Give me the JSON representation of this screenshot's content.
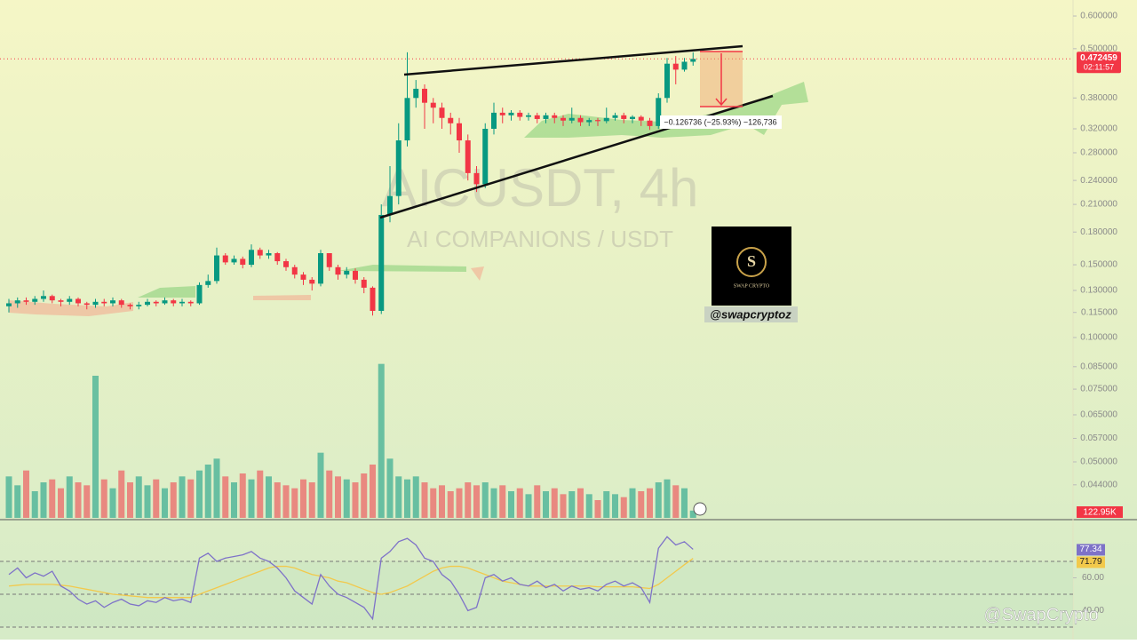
{
  "chart_data": {
    "type": "candlestick",
    "title": "AICUSDT, 4h",
    "subtitle": "AI COMPANIONS / USDT",
    "open": [
      0.119,
      0.121,
      0.123,
      0.122,
      0.124,
      0.126,
      0.123,
      0.122,
      0.124,
      0.121,
      0.12,
      0.122,
      0.121,
      0.123,
      0.12,
      0.119,
      0.12,
      0.122,
      0.121,
      0.123,
      0.121,
      0.122,
      0.121,
      0.134,
      0.137,
      0.158,
      0.152,
      0.155,
      0.15,
      0.163,
      0.158,
      0.16,
      0.153,
      0.148,
      0.142,
      0.138,
      0.135,
      0.16,
      0.148,
      0.142,
      0.145,
      0.138,
      0.132,
      0.116,
      0.198,
      0.22,
      0.3,
      0.38,
      0.4,
      0.37,
      0.36,
      0.34,
      0.33,
      0.3,
      0.25,
      0.235,
      0.32,
      0.35,
      0.345,
      0.35,
      0.342,
      0.345,
      0.338,
      0.345,
      0.34,
      0.335,
      0.34,
      0.332,
      0.336,
      0.334,
      0.34,
      0.345,
      0.338,
      0.342,
      0.335,
      0.325,
      0.38,
      0.46,
      0.445,
      0.465
    ],
    "high": [
      0.124,
      0.125,
      0.125,
      0.126,
      0.13,
      0.127,
      0.124,
      0.126,
      0.125,
      0.122,
      0.124,
      0.124,
      0.125,
      0.124,
      0.121,
      0.122,
      0.124,
      0.123,
      0.125,
      0.124,
      0.124,
      0.123,
      0.136,
      0.142,
      0.165,
      0.16,
      0.158,
      0.157,
      0.168,
      0.165,
      0.163,
      0.161,
      0.155,
      0.15,
      0.144,
      0.14,
      0.163,
      0.16,
      0.15,
      0.148,
      0.147,
      0.14,
      0.133,
      0.21,
      0.26,
      0.33,
      0.49,
      0.42,
      0.41,
      0.38,
      0.37,
      0.35,
      0.34,
      0.31,
      0.26,
      0.33,
      0.37,
      0.36,
      0.355,
      0.355,
      0.35,
      0.35,
      0.35,
      0.35,
      0.345,
      0.36,
      0.345,
      0.34,
      0.34,
      0.36,
      0.35,
      0.35,
      0.345,
      0.345,
      0.34,
      0.39,
      0.475,
      0.48,
      0.475,
      0.49
    ],
    "low": [
      0.115,
      0.118,
      0.12,
      0.12,
      0.122,
      0.121,
      0.119,
      0.12,
      0.119,
      0.117,
      0.118,
      0.119,
      0.119,
      0.118,
      0.117,
      0.117,
      0.119,
      0.119,
      0.12,
      0.119,
      0.119,
      0.119,
      0.12,
      0.132,
      0.135,
      0.15,
      0.15,
      0.147,
      0.148,
      0.155,
      0.155,
      0.15,
      0.145,
      0.139,
      0.134,
      0.13,
      0.133,
      0.145,
      0.138,
      0.139,
      0.135,
      0.128,
      0.113,
      0.114,
      0.19,
      0.21,
      0.29,
      0.36,
      0.32,
      0.33,
      0.32,
      0.31,
      0.28,
      0.24,
      0.225,
      0.23,
      0.31,
      0.33,
      0.335,
      0.335,
      0.335,
      0.33,
      0.33,
      0.33,
      0.325,
      0.33,
      0.325,
      0.325,
      0.325,
      0.33,
      0.335,
      0.33,
      0.33,
      0.325,
      0.318,
      0.32,
      0.37,
      0.41,
      0.44,
      0.455
    ],
    "close": [
      0.121,
      0.123,
      0.122,
      0.124,
      0.126,
      0.123,
      0.122,
      0.124,
      0.121,
      0.12,
      0.122,
      0.121,
      0.123,
      0.12,
      0.119,
      0.12,
      0.122,
      0.121,
      0.123,
      0.121,
      0.122,
      0.121,
      0.134,
      0.137,
      0.158,
      0.152,
      0.155,
      0.15,
      0.163,
      0.158,
      0.16,
      0.153,
      0.148,
      0.142,
      0.138,
      0.135,
      0.16,
      0.148,
      0.142,
      0.145,
      0.138,
      0.132,
      0.116,
      0.198,
      0.22,
      0.3,
      0.38,
      0.4,
      0.37,
      0.36,
      0.34,
      0.33,
      0.3,
      0.25,
      0.235,
      0.32,
      0.35,
      0.345,
      0.35,
      0.342,
      0.345,
      0.338,
      0.345,
      0.34,
      0.335,
      0.34,
      0.332,
      0.336,
      0.334,
      0.34,
      0.345,
      0.338,
      0.342,
      0.335,
      0.325,
      0.38,
      0.46,
      0.445,
      0.465,
      0.472459
    ],
    "up_color": "#089981",
    "down_color": "#f23645",
    "log_scale": true,
    "ylim": [
      0.0366,
      0.656
    ],
    "yticks": [
      {
        "value": 0.6,
        "label": "0.600000"
      },
      {
        "value": 0.5,
        "label": "0.500000"
      },
      {
        "value": 0.38,
        "label": "0.380000"
      },
      {
        "value": 0.32,
        "label": "0.320000"
      },
      {
        "value": 0.28,
        "label": "0.280000"
      },
      {
        "value": 0.24,
        "label": "0.240000"
      },
      {
        "value": 0.21,
        "label": "0.210000"
      },
      {
        "value": 0.18,
        "label": "0.180000"
      },
      {
        "value": 0.15,
        "label": "0.150000"
      },
      {
        "value": 0.13,
        "label": "0.130000"
      },
      {
        "value": 0.115,
        "label": "0.115000"
      },
      {
        "value": 0.1,
        "label": "0.100000"
      },
      {
        "value": 0.085,
        "label": "0.085000"
      },
      {
        "value": 0.075,
        "label": "0.075000"
      },
      {
        "value": 0.065,
        "label": "0.065000"
      },
      {
        "value": 0.057,
        "label": "0.057000"
      },
      {
        "value": 0.05,
        "label": "0.050000"
      },
      {
        "value": 0.044,
        "label": "0.044000"
      }
    ],
    "last_price": 0.472459,
    "countdown": "02:11:57",
    "measure_label": "−0.126736 (−25.93%) −126,736",
    "volume": {
      "values": [
        700000,
        550000,
        800000,
        450000,
        600000,
        650000,
        500000,
        700000,
        600000,
        550000,
        2400000,
        650000,
        500000,
        800000,
        600000,
        700000,
        550000,
        650000,
        500000,
        600000,
        700000,
        650000,
        800000,
        900000,
        1000000,
        700000,
        600000,
        750000,
        650000,
        800000,
        700000,
        600000,
        550000,
        500000,
        650000,
        600000,
        1100000,
        800000,
        700000,
        650000,
        600000,
        750000,
        900000,
        2600000,
        1000000,
        700000,
        650000,
        700000,
        600000,
        500000,
        550000,
        450000,
        500000,
        600000,
        550000,
        600000,
        500000,
        550000,
        450000,
        500000,
        400000,
        550000,
        450000,
        500000,
        400000,
        450000,
        500000,
        400000,
        300000,
        450000,
        400000,
        350000,
        500000,
        450000,
        500000,
        600000,
        650000,
        550000,
        500000,
        122950
      ],
      "ylim": [
        0,
        3000000
      ],
      "current_label": "122.95K"
    },
    "rsi": {
      "values": [
        62,
        66,
        60,
        63,
        61,
        64,
        55,
        52,
        47,
        44,
        46,
        42,
        45,
        47,
        44,
        43,
        46,
        45,
        48,
        46,
        47,
        45,
        72,
        75,
        70,
        72,
        73,
        74,
        76,
        72,
        70,
        66,
        60,
        52,
        48,
        44,
        62,
        55,
        50,
        48,
        45,
        42,
        35,
        72,
        76,
        82,
        84,
        80,
        72,
        70,
        62,
        58,
        50,
        40,
        42,
        60,
        62,
        58,
        60,
        56,
        55,
        58,
        54,
        56,
        52,
        55,
        53,
        54,
        52,
        56,
        58,
        55,
        57,
        54,
        45,
        78,
        85,
        80,
        82,
        77.34
      ],
      "ma_values": [
        55,
        55.5,
        56,
        56,
        56,
        56,
        55.5,
        55,
        54,
        53,
        52,
        51,
        50,
        49.5,
        49,
        48.5,
        48,
        48,
        48,
        48,
        48,
        48,
        50,
        52,
        54,
        56,
        58,
        60,
        62,
        64,
        66,
        67,
        67,
        66,
        64,
        62,
        61,
        60,
        58,
        57,
        55,
        53,
        51,
        50,
        51,
        53,
        55,
        58,
        61,
        64,
        66,
        67,
        67,
        66,
        64,
        62,
        60,
        58,
        57,
        56,
        55,
        55,
        55,
        55,
        55,
        55,
        55,
        55,
        54.5,
        54.5,
        54.5,
        54.5,
        54.5,
        54,
        53.5,
        56,
        60,
        64,
        68,
        71.79
      ],
      "color": "#7e72c8",
      "ma_color": "#f2c94c",
      "ylim": [
        22.4,
        93.8
      ],
      "yticks": [
        {
          "value": 60,
          "label": "60.00"
        },
        {
          "value": 40,
          "label": "40.00"
        }
      ],
      "bands": [
        70,
        50,
        30
      ]
    }
  },
  "branding": {
    "logo_letter": "S",
    "logo_text": "SWAP CRYPTO",
    "handle": "@swapcryptoz",
    "watermark": "@SwapCrypto"
  }
}
